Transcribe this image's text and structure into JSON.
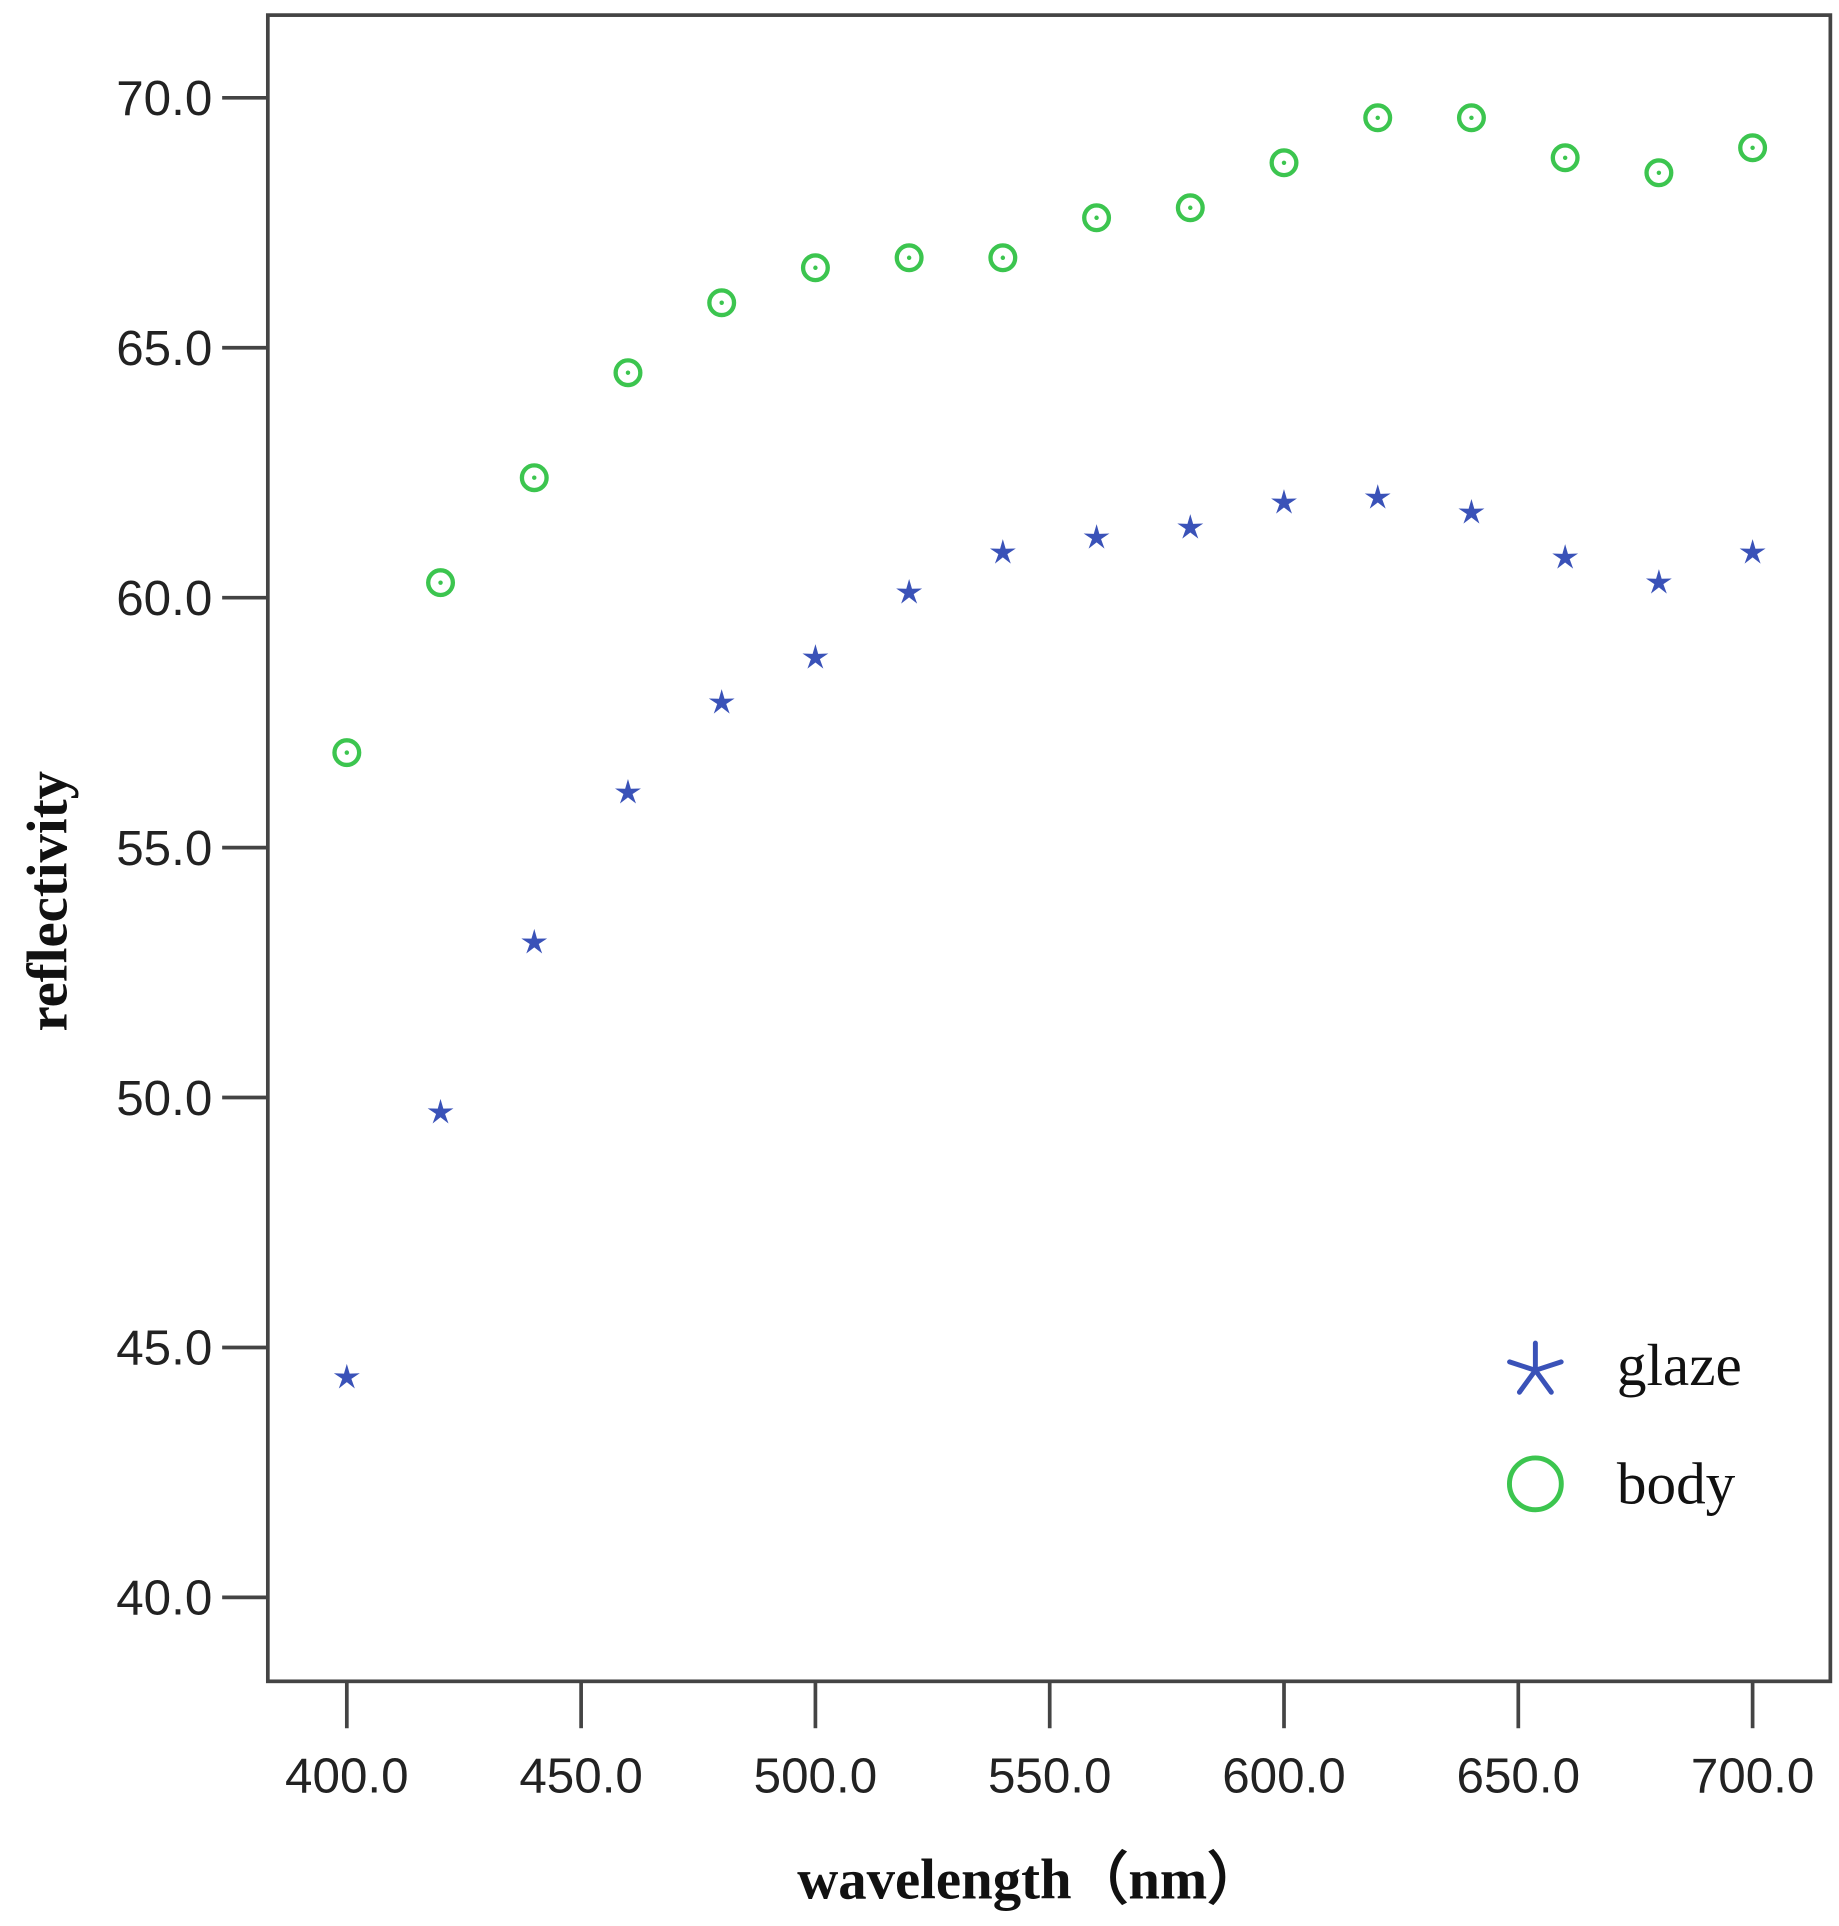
{
  "chart_data": {
    "type": "scatter",
    "title": "",
    "xlabel": "wavelength（nm）",
    "ylabel": "reflectivity",
    "xlim": [
      383,
      716
    ],
    "ylim": [
      38.3,
      71.7
    ],
    "xticks": [
      400,
      450,
      500,
      550,
      600,
      650,
      700
    ],
    "xtick_labels": [
      "400.0",
      "450.0",
      "500.0",
      "550.0",
      "600.0",
      "650.0",
      "700.0"
    ],
    "yticks": [
      40,
      45,
      50,
      55,
      60,
      65,
      70
    ],
    "ytick_labels": [
      "40.0",
      "45.0",
      "50.0",
      "55.0",
      "60.0",
      "65.0",
      "70.0"
    ],
    "grid": false,
    "legend_position": "bottom-right",
    "x": [
      400,
      420,
      440,
      460,
      480,
      500,
      520,
      540,
      560,
      580,
      600,
      620,
      640,
      660,
      680,
      700
    ],
    "series": [
      {
        "name": "glaze",
        "marker": "star",
        "color": "#3a52b8",
        "values": [
          44.4,
          49.7,
          53.1,
          56.1,
          57.9,
          58.8,
          60.1,
          60.9,
          61.2,
          61.4,
          61.9,
          62.0,
          61.7,
          60.8,
          60.3,
          60.9
        ]
      },
      {
        "name": "body",
        "marker": "circle",
        "color": "#3cc54f",
        "values": [
          56.9,
          60.3,
          62.4,
          64.5,
          65.9,
          66.6,
          66.8,
          66.8,
          67.6,
          67.8,
          68.7,
          69.6,
          69.6,
          68.8,
          68.5,
          69.0
        ]
      }
    ]
  }
}
